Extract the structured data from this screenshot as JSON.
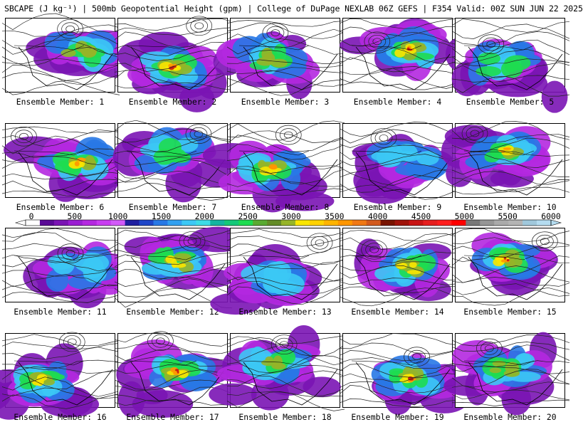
{
  "header": {
    "title": "SBCAPE (J kg⁻¹) | 500mb Geopotential Height (gpm) | College of DuPage NEXLAB 06Z GEFS | F354 Valid: 00Z SUN JUN 22 2025"
  },
  "members": [
    {
      "label": "Ensemble Member: 1"
    },
    {
      "label": "Ensemble Member: 2"
    },
    {
      "label": "Ensemble Member: 3"
    },
    {
      "label": "Ensemble Member: 4"
    },
    {
      "label": "Ensemble Member: 5"
    },
    {
      "label": "Ensemble Member: 6"
    },
    {
      "label": "Ensemble Member: 7"
    },
    {
      "label": "Ensemble Member: 8"
    },
    {
      "label": "Ensemble Member: 9"
    },
    {
      "label": "Ensemble Member: 10"
    },
    {
      "label": "Ensemble Member: 11"
    },
    {
      "label": "Ensemble Member: 12"
    },
    {
      "label": "Ensemble Member: 13"
    },
    {
      "label": "Ensemble Member: 14"
    },
    {
      "label": "Ensemble Member: 15"
    },
    {
      "label": "Ensemble Member: 16"
    },
    {
      "label": "Ensemble Member: 17"
    },
    {
      "label": "Ensemble Member: 18"
    },
    {
      "label": "Ensemble Member: 19"
    },
    {
      "label": "Ensemble Member: 20"
    }
  ],
  "colorbar": {
    "min": 0,
    "max": 6000,
    "ticks": [
      "0",
      "500",
      "1000",
      "1500",
      "2000",
      "2500",
      "3000",
      "3500",
      "4000",
      "4500",
      "5000",
      "5500",
      "6000"
    ],
    "colors": [
      "#ffffff",
      "#5a0a96",
      "#7a14b4",
      "#9a1ed2",
      "#b428e0",
      "#c83cf0",
      "#d25af8",
      "#1e1ea0",
      "#1e46c8",
      "#2878e6",
      "#32a0f0",
      "#3cc8f5",
      "#3cdce6",
      "#14b4a0",
      "#14c878",
      "#1edc50",
      "#5aaa32",
      "#648c28",
      "#96b428",
      "#fae600",
      "#ffd200",
      "#ffb400",
      "#ff9600",
      "#f07814",
      "#d25a1e",
      "#781400",
      "#a0140a",
      "#c81414",
      "#e61e1e",
      "#ff1e1e",
      "#ff0000",
      "#787878",
      "#969696",
      "#aaaaaa",
      "#b4b4b4",
      "#a0c8dc",
      "#b4dcf0"
    ]
  }
}
